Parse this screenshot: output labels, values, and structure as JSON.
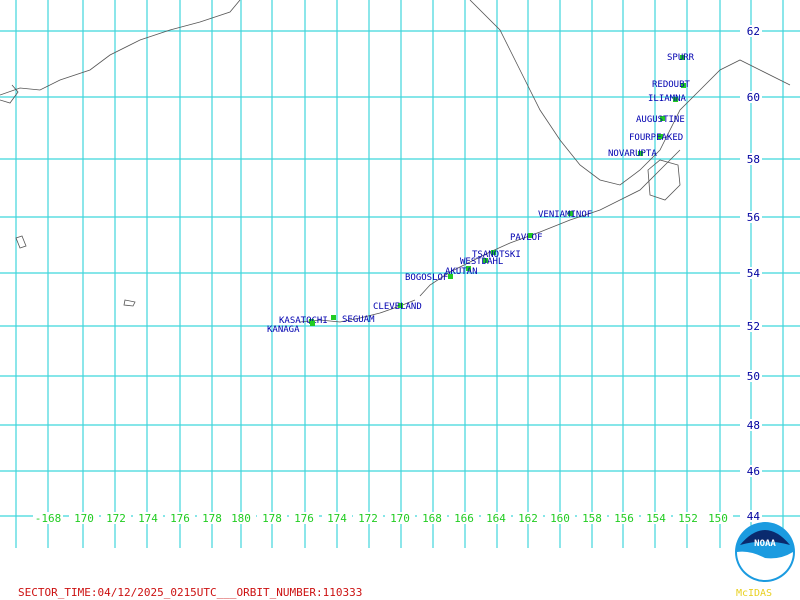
{
  "map": {
    "lat_labels": [
      "62",
      "60",
      "58",
      "56",
      "54",
      "52",
      "50",
      "48",
      "46",
      "44"
    ],
    "lon_labels": [
      "-168",
      "170",
      "172",
      "174",
      "176",
      "178",
      "180",
      "178",
      "176",
      "174",
      "172",
      "170",
      "168",
      "166",
      "164",
      "162",
      "160",
      "158",
      "156",
      "154",
      "152",
      "150"
    ],
    "volcanoes": [
      "SPURR",
      "REDOUBT",
      "ILIAMNA",
      "AUGUSTINE",
      "FOURPEAKED",
      "NOVARUPTA",
      "VENIAMINOF",
      "PAVLOF",
      "TSANOTSKI",
      "WESTDAHL",
      "AKUTAN",
      "BOGOSLOF",
      "CLEVELAND",
      "KASATOCHI",
      "SEGUAM",
      "KANAGA"
    ],
    "footer": "SECTOR_TIME:04/12/2025_0215UTC___ORBIT_NUMBER:110333",
    "logo": {
      "title": "NOAA",
      "caption": "McIDAS"
    }
  }
}
